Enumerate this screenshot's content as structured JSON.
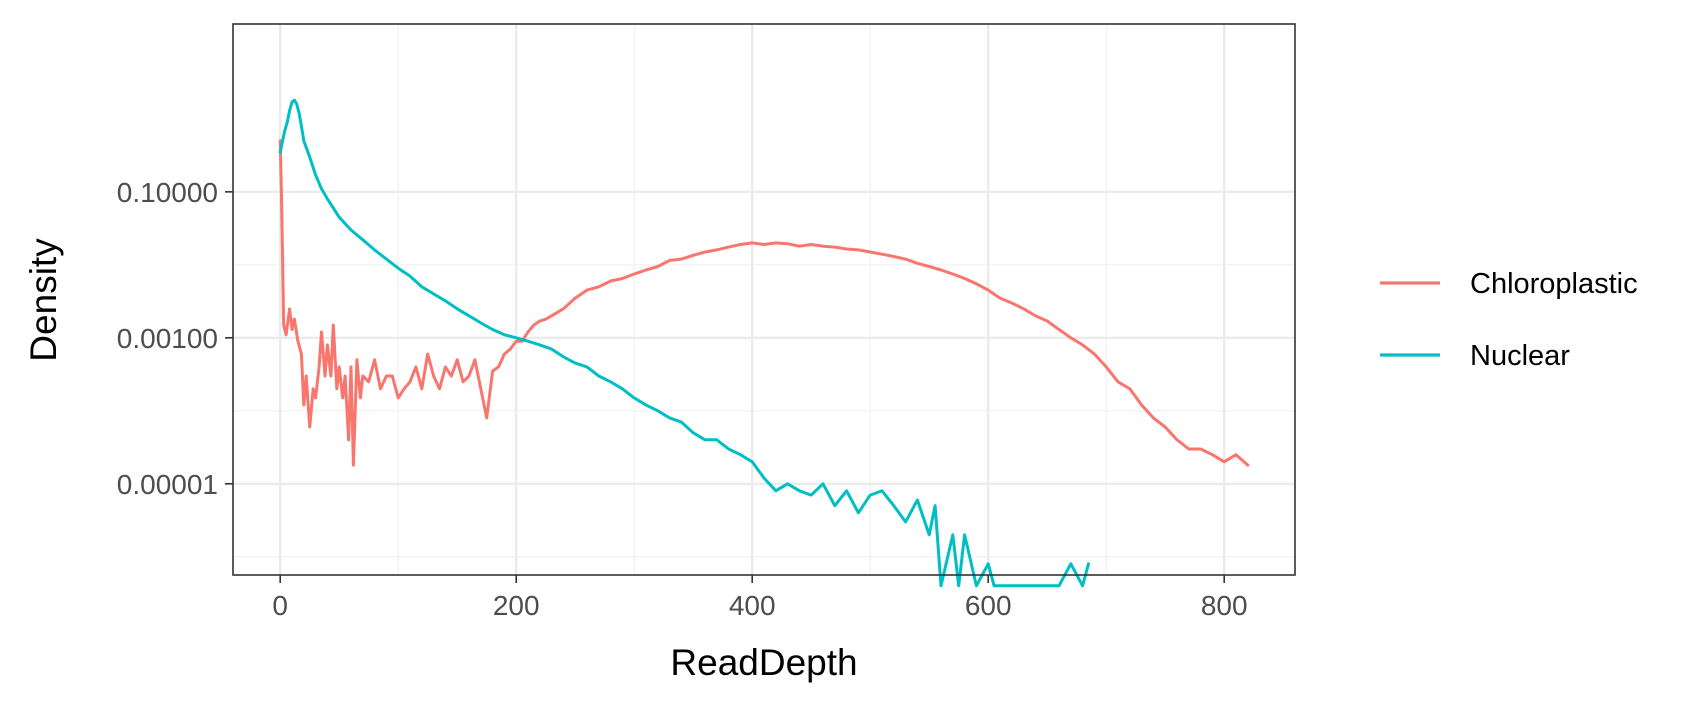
{
  "chart_data": {
    "type": "line",
    "xlabel": "ReadDepth",
    "ylabel": "Density",
    "xlim": [
      -40,
      860
    ],
    "ylim_log10": [
      -6.25,
      1.3
    ],
    "y_scale": "log10",
    "x_ticks": [
      {
        "value": 0,
        "label": "0"
      },
      {
        "value": 200,
        "label": "200"
      },
      {
        "value": 400,
        "label": "400"
      },
      {
        "value": 600,
        "label": "600"
      },
      {
        "value": 800,
        "label": "800"
      }
    ],
    "y_ticks": [
      {
        "value": 0.1,
        "label": "0.10000"
      },
      {
        "value": 0.001,
        "label": "0.00100"
      },
      {
        "value": 1e-05,
        "label": "0.00001"
      }
    ],
    "grid": true,
    "legend_position": "right",
    "series": [
      {
        "name": "Chloroplastic",
        "color": "#F8766D",
        "x": [
          0,
          1,
          2,
          3,
          5,
          8,
          10,
          12,
          15,
          18,
          20,
          22,
          25,
          28,
          30,
          33,
          35,
          38,
          40,
          43,
          45,
          48,
          50,
          53,
          55,
          58,
          60,
          62,
          65,
          68,
          70,
          75,
          80,
          85,
          90,
          95,
          100,
          105,
          110,
          115,
          120,
          125,
          130,
          135,
          140,
          145,
          150,
          155,
          160,
          165,
          170,
          175,
          180,
          185,
          190,
          195,
          200,
          205,
          210,
          215,
          220,
          225,
          230,
          240,
          250,
          260,
          270,
          280,
          290,
          300,
          310,
          320,
          330,
          340,
          350,
          360,
          370,
          380,
          390,
          400,
          410,
          420,
          430,
          440,
          450,
          460,
          470,
          480,
          490,
          500,
          510,
          520,
          530,
          540,
          550,
          560,
          570,
          580,
          590,
          600,
          610,
          620,
          630,
          640,
          650,
          660,
          670,
          680,
          690,
          700,
          710,
          720,
          730,
          740,
          750,
          760,
          770,
          780,
          790,
          800,
          810,
          820
        ],
        "y": [
          0.5,
          0.1,
          0.012,
          0.0015,
          0.0011,
          0.0025,
          0.0013,
          0.0018,
          0.0009,
          0.0006,
          0.00012,
          0.0003,
          6e-05,
          0.0002,
          0.00015,
          0.0004,
          0.0012,
          0.0003,
          0.0008,
          0.0003,
          0.0015,
          0.0002,
          0.0004,
          0.00015,
          0.0003,
          4e-05,
          0.0004,
          1.8e-05,
          0.0005,
          0.00015,
          0.0003,
          0.00025,
          0.0005,
          0.0002,
          0.0003,
          0.0003,
          0.00015,
          0.0002,
          0.00025,
          0.0004,
          0.0002,
          0.0006,
          0.0003,
          0.0002,
          0.0004,
          0.0003,
          0.0005,
          0.00025,
          0.0003,
          0.0005,
          0.0002,
          8e-05,
          0.00035,
          0.0004,
          0.0006,
          0.0007,
          0.0009,
          0.0009,
          0.0012,
          0.0015,
          0.0017,
          0.0018,
          0.002,
          0.0025,
          0.0035,
          0.0045,
          0.005,
          0.006,
          0.0065,
          0.0075,
          0.0085,
          0.0095,
          0.0115,
          0.012,
          0.0135,
          0.015,
          0.016,
          0.0175,
          0.019,
          0.02,
          0.019,
          0.02,
          0.0195,
          0.018,
          0.019,
          0.018,
          0.0175,
          0.0165,
          0.016,
          0.015,
          0.014,
          0.013,
          0.012,
          0.0105,
          0.0095,
          0.0085,
          0.0075,
          0.0065,
          0.0055,
          0.0045,
          0.0035,
          0.003,
          0.0025,
          0.002,
          0.0017,
          0.0013,
          0.001,
          0.0008,
          0.0006,
          0.0004,
          0.00025,
          0.0002,
          0.00012,
          8e-05,
          6e-05,
          4e-05,
          3e-05,
          3e-05,
          2.5e-05,
          2e-05,
          2.5e-05,
          1.8e-05
        ]
      },
      {
        "name": "Nuclear",
        "color": "#00BFC4",
        "x": [
          0,
          2,
          4,
          6,
          8,
          10,
          12,
          14,
          16,
          18,
          20,
          25,
          30,
          35,
          40,
          45,
          50,
          60,
          70,
          80,
          90,
          100,
          110,
          120,
          130,
          140,
          150,
          160,
          170,
          180,
          190,
          200,
          210,
          220,
          230,
          240,
          250,
          260,
          270,
          280,
          290,
          300,
          310,
          320,
          330,
          340,
          350,
          360,
          370,
          380,
          390,
          400,
          410,
          420,
          430,
          440,
          450,
          460,
          470,
          480,
          490,
          500,
          510,
          520,
          530,
          540,
          550,
          555,
          560,
          570,
          575,
          580,
          590,
          600,
          605,
          610,
          620,
          640,
          660,
          670,
          680,
          685
        ],
        "y": [
          0.35,
          0.5,
          0.7,
          0.9,
          1.3,
          1.7,
          1.8,
          1.6,
          1.2,
          0.8,
          0.5,
          0.3,
          0.17,
          0.11,
          0.08,
          0.06,
          0.045,
          0.03,
          0.022,
          0.016,
          0.012,
          0.009,
          0.007,
          0.005,
          0.004,
          0.0032,
          0.0025,
          0.002,
          0.0016,
          0.0013,
          0.0011,
          0.001,
          0.0009,
          0.0008,
          0.0007,
          0.00055,
          0.00045,
          0.0004,
          0.0003,
          0.00025,
          0.0002,
          0.00015,
          0.00012,
          0.0001,
          8e-05,
          7e-05,
          5e-05,
          4e-05,
          4e-05,
          3e-05,
          2.5e-05,
          2e-05,
          1.2e-05,
          8e-06,
          1e-05,
          8e-06,
          7e-06,
          1e-05,
          5e-06,
          8e-06,
          4e-06,
          7e-06,
          8e-06,
          5e-06,
          3e-06,
          6e-06,
          2e-06,
          5e-06,
          4e-07,
          2e-06,
          4e-07,
          2e-06,
          4e-07,
          8e-07,
          4e-07,
          4e-07,
          4e-07,
          4e-07,
          4e-07,
          8e-07,
          4e-07,
          8e-07
        ]
      }
    ]
  }
}
